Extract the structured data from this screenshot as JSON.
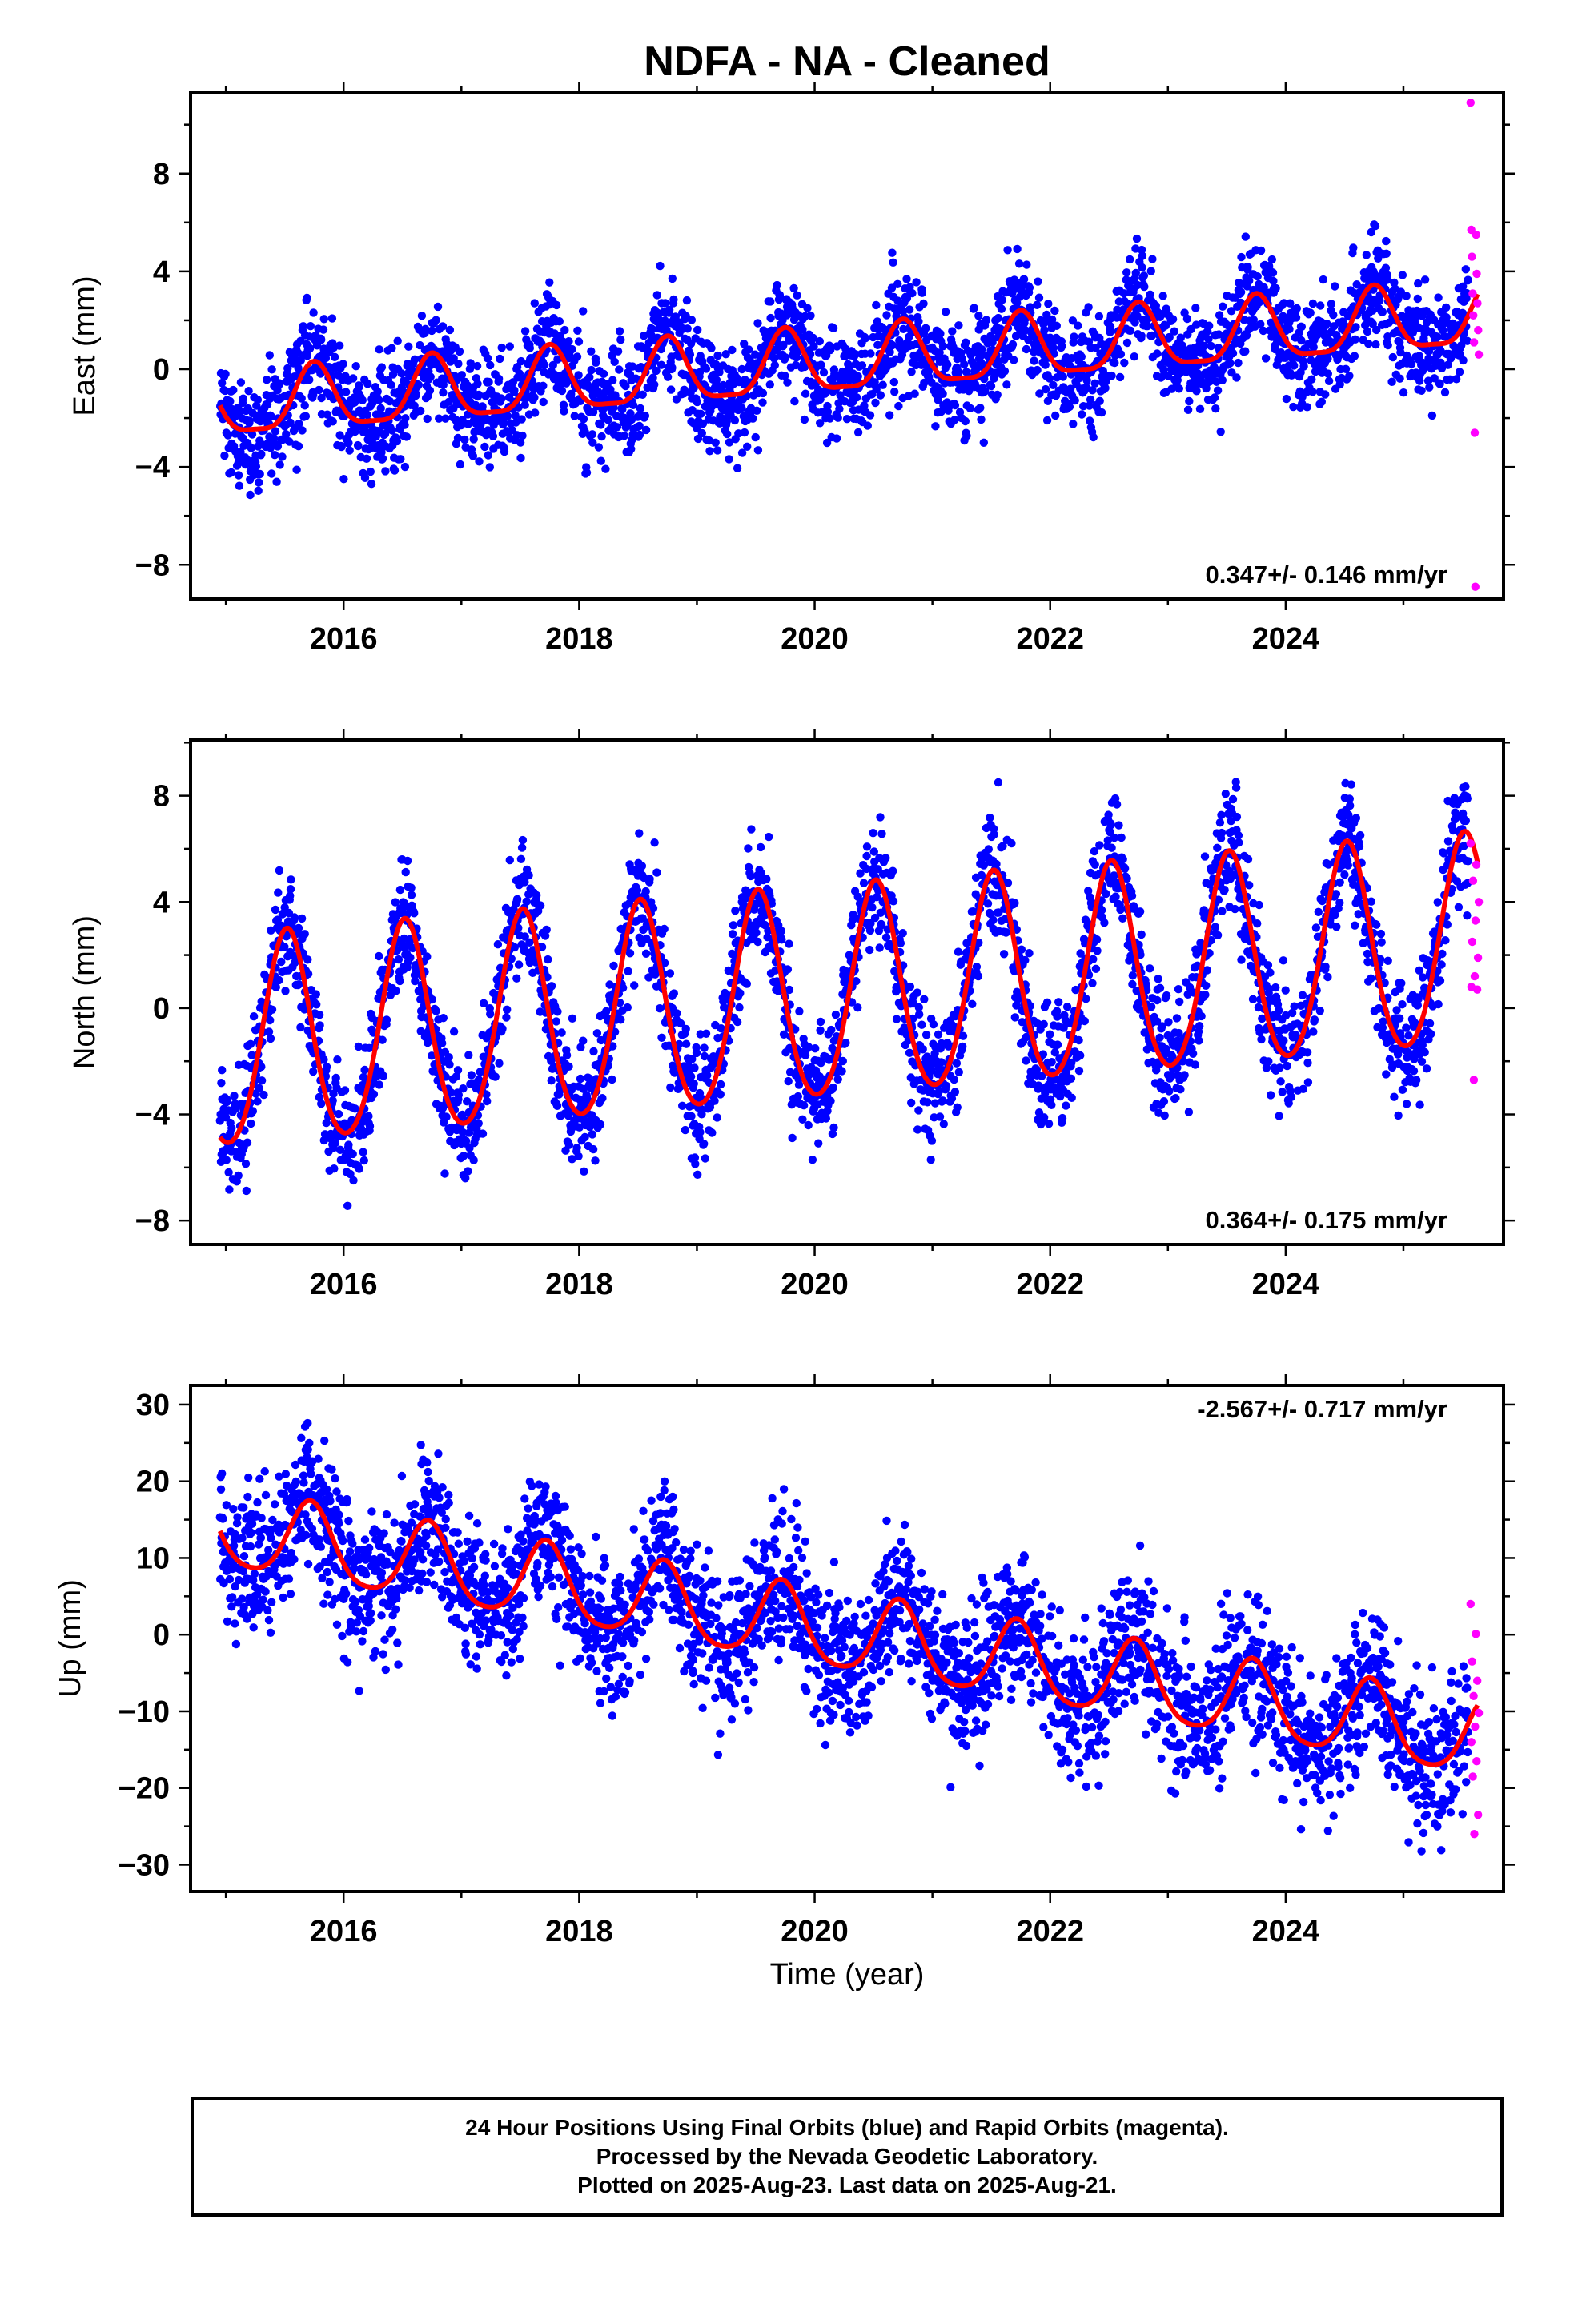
{
  "title": "NDFA  - NA - Cleaned",
  "xlabel": "Time (year)",
  "colors": {
    "final_orbits": "#0000ff",
    "rapid_orbits": "#ff00ff",
    "model": "#ff0000",
    "axes": "#000000"
  },
  "caption": [
    "24 Hour Positions Using Final Orbits (blue) and Rapid Orbits (magenta).",
    "Processed by the Nevada Geodetic Laboratory.",
    "Plotted on 2025-Aug-23. Last data on 2025-Aug-21."
  ],
  "chart_data": [
    {
      "type": "scatter",
      "ylabel": "East (mm)",
      "velocity_label": "0.347+/- 0.146 mm/yr",
      "velocity_position": "bottom-right",
      "xlim": [
        2014.7,
        2025.85
      ],
      "ylim": [
        -9.4,
        11.3
      ],
      "x_ticks": [
        2016,
        2018,
        2020,
        2022,
        2024
      ],
      "x_tick_labels": [
        "2016",
        "2018",
        "2020",
        "2022",
        "2024"
      ],
      "y_ticks": [
        -8,
        -4,
        0,
        4,
        8
      ],
      "y_tick_labels": [
        "−8",
        "−4",
        "0",
        "4",
        "8"
      ],
      "grid": false,
      "data_span": [
        2014.95,
        2025.55
      ],
      "model": {
        "offset_2020": 0.15,
        "velocity": 0.347,
        "annual_amplitude": 1.3,
        "annual_peak_phase": 0.75,
        "semiannual_amplitude": 0.35
      },
      "scatter_sigma": 1.1,
      "final_orbits_max": 2025.55,
      "rapid_orbits": {
        "x_range": [
          2025.57,
          2025.64
        ],
        "values": [
          10.9,
          -8.9,
          5.7,
          5.5,
          4.6,
          3.9,
          3.1,
          2.7,
          2.2,
          1.6,
          1.1,
          0.6,
          -2.6
        ]
      }
    },
    {
      "type": "scatter",
      "ylabel": "North (mm)",
      "velocity_label": "0.364+/- 0.175 mm/yr",
      "velocity_position": "bottom-right",
      "xlim": [
        2014.7,
        2025.85
      ],
      "ylim": [
        -8.9,
        10.1
      ],
      "x_ticks": [
        2016,
        2018,
        2020,
        2022,
        2024
      ],
      "x_tick_labels": [
        "2016",
        "2018",
        "2020",
        "2022",
        "2024"
      ],
      "y_ticks": [
        -8,
        -4,
        0,
        4,
        8
      ],
      "y_tick_labels": [
        "−8",
        "−4",
        "0",
        "4",
        "8"
      ],
      "grid": false,
      "data_span": [
        2014.95,
        2025.55
      ],
      "model": {
        "offset_2020": 0.3,
        "velocity": 0.364,
        "annual_amplitude": 3.95,
        "annual_peak_phase": 0.52,
        "semiannual_amplitude": 0.4
      },
      "scatter_sigma": 1.15,
      "final_orbits_max": 2025.55,
      "rapid_orbits": {
        "x_range": [
          2025.57,
          2025.64
        ],
        "values": [
          6.2,
          5.4,
          4.8,
          4.0,
          3.3,
          2.5,
          1.9,
          1.2,
          0.8,
          0.7,
          -2.7
        ]
      }
    },
    {
      "type": "scatter",
      "ylabel": "Up (mm)",
      "velocity_label": "-2.567+/- 0.717 mm/yr",
      "velocity_position": "top-right",
      "xlim": [
        2014.7,
        2025.85
      ],
      "ylim": [
        -33.5,
        32.5
      ],
      "x_ticks": [
        2016,
        2018,
        2020,
        2022,
        2024
      ],
      "x_tick_labels": [
        "2016",
        "2018",
        "2020",
        "2022",
        "2024"
      ],
      "y_ticks": [
        -30,
        -20,
        -10,
        0,
        10,
        20,
        30
      ],
      "y_tick_labels": [
        "−30",
        "−20",
        "−10",
        "0",
        "10",
        "20",
        "30"
      ],
      "grid": false,
      "data_span": [
        2014.95,
        2025.55
      ],
      "model": {
        "offset_2020": 0.7,
        "velocity": -2.567,
        "annual_amplitude": 5.0,
        "annual_peak_phase": 0.72,
        "semiannual_amplitude": 0.8
      },
      "scatter_sigma": 4.6,
      "final_orbits_max": 2025.55,
      "rapid_orbits": {
        "x_range": [
          2025.57,
          2025.64
        ],
        "values": [
          4.0,
          0.1,
          -3.5,
          -6.0,
          -8.0,
          -10.2,
          -12.0,
          -14.0,
          -16.5,
          -18.5,
          -23.5,
          -26.0
        ]
      }
    }
  ]
}
